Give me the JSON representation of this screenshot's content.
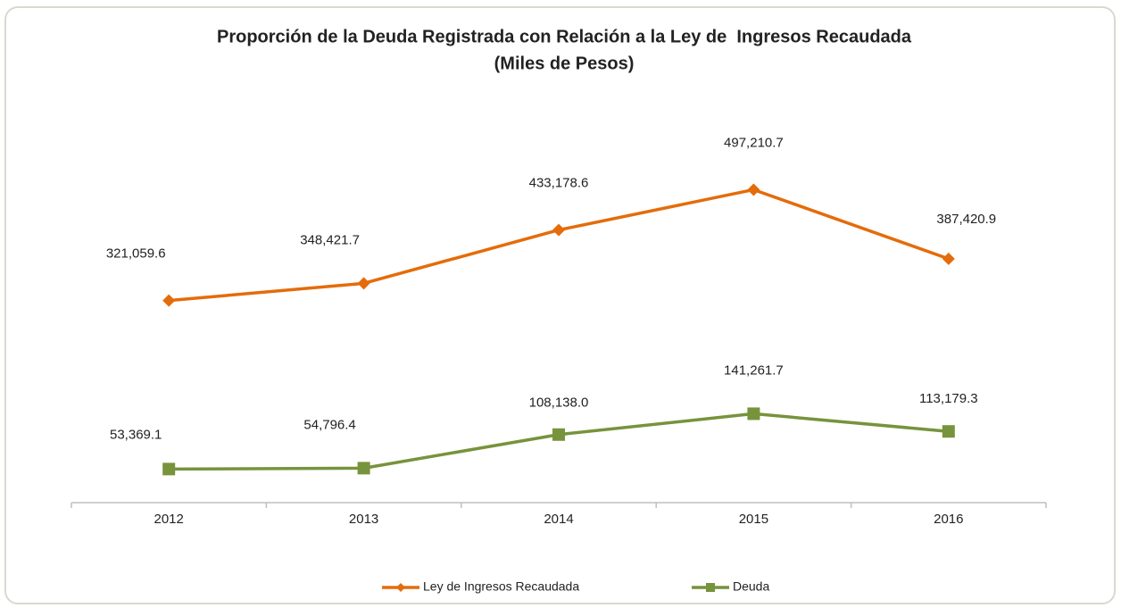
{
  "chart_data": {
    "type": "line",
    "title": "Proporción de la Deuda Registrada con Relación a la Ley de  Ingresos Recaudada",
    "subtitle": "(Miles de Pesos)",
    "categories": [
      "2012",
      "2013",
      "2014",
      "2015",
      "2016"
    ],
    "series": [
      {
        "name": "Ley de Ingresos Recaudada",
        "color": "#e46c0a",
        "marker": "diamond",
        "values": [
          321059.6,
          348421.7,
          433178.6,
          497210.7,
          387420.9
        ],
        "value_labels": [
          "321,059.6",
          "348,421.7",
          "433,178.6",
          "497,210.7",
          "387,420.9"
        ]
      },
      {
        "name": "Deuda",
        "color": "#77933c",
        "marker": "square",
        "values": [
          53369.1,
          54796.4,
          108138.0,
          141261.7,
          113179.3
        ],
        "value_labels": [
          "53,369.1",
          "54,796.4",
          "108,138.0",
          "141,261.7",
          "113,179.3"
        ]
      }
    ],
    "ylim": [
      0,
      600000
    ],
    "legend": "bottom"
  }
}
